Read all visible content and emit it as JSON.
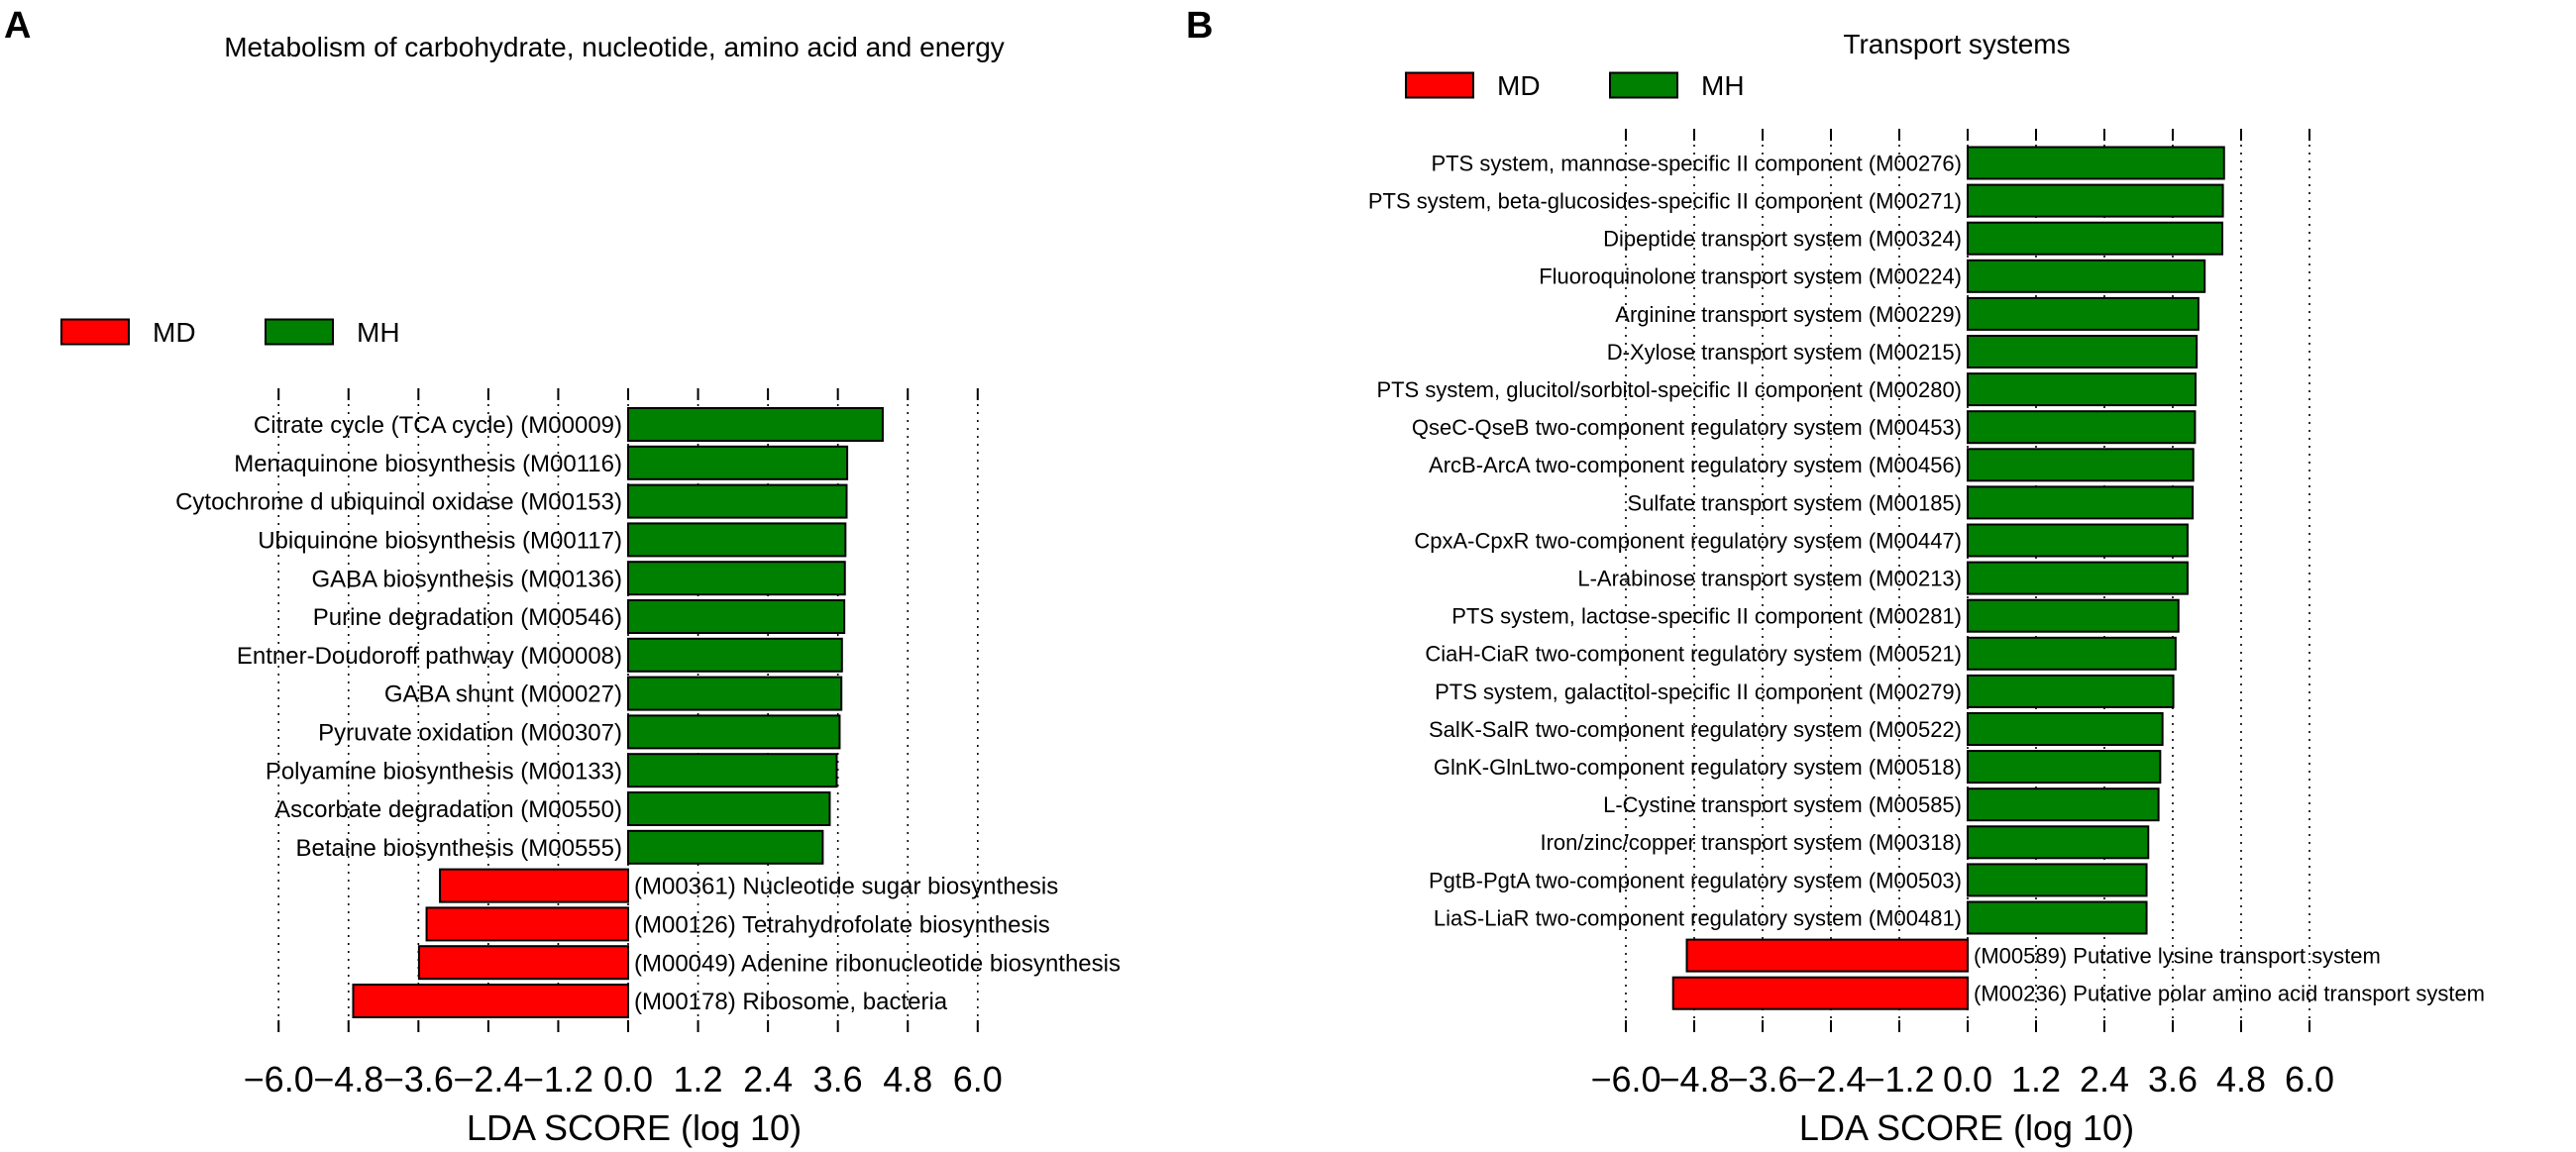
{
  "panels": {
    "a": {
      "letter": "A"
    },
    "b": {
      "letter": "B"
    }
  },
  "colors": {
    "MD": "#ff0000",
    "MH": "#008000"
  },
  "chart_data": [
    {
      "type": "bar",
      "orientation": "horizontal",
      "title": "Metabolism of carbohydrate, nucleotide, amino acid and energy",
      "xlabel": "LDA SCORE (log 10)",
      "ylabel": "",
      "xlim": [
        -6.0,
        6.0
      ],
      "xticks": [
        "−6.0",
        "−4.8",
        "−3.6",
        "−2.4",
        "−1.2",
        "0.0",
        "1.2",
        "2.4",
        "3.6",
        "4.8",
        "6.0"
      ],
      "grid": "vertical dotted",
      "legend": {
        "position": "top-left",
        "entries": [
          "MD",
          "MH"
        ]
      },
      "bars": [
        {
          "label": "Citrate cycle (TCA cycle) (M00009)",
          "value": 4.37,
          "group": "MH"
        },
        {
          "label": "Menaquinone biosynthesis (M00116)",
          "value": 3.76,
          "group": "MH"
        },
        {
          "label": "Cytochrome d ubiquinol oxidase (M00153)",
          "value": 3.75,
          "group": "MH"
        },
        {
          "label": "Ubiquinone biosynthesis (M00117)",
          "value": 3.73,
          "group": "MH"
        },
        {
          "label": "GABA biosynthesis (M00136)",
          "value": 3.72,
          "group": "MH"
        },
        {
          "label": "Purine degradation (M00546)",
          "value": 3.71,
          "group": "MH"
        },
        {
          "label": "Entner-Doudoroff pathway (M00008)",
          "value": 3.67,
          "group": "MH"
        },
        {
          "label": "GABA shunt (M00027)",
          "value": 3.66,
          "group": "MH"
        },
        {
          "label": "Pyruvate oxidation (M00307)",
          "value": 3.63,
          "group": "MH"
        },
        {
          "label": "Polyamine biosynthesis (M00133)",
          "value": 3.58,
          "group": "MH"
        },
        {
          "label": "Ascorbate degradation (M00550)",
          "value": 3.46,
          "group": "MH"
        },
        {
          "label": "Betaine biosynthesis (M00555)",
          "value": 3.34,
          "group": "MH"
        },
        {
          "label": "(M00361) Nucleotide sugar biosynthesis",
          "value": -3.23,
          "group": "MD"
        },
        {
          "label": "(M00126) Tetrahydrofolate biosynthesis",
          "value": -3.46,
          "group": "MD"
        },
        {
          "label": "(M00049) Adenine ribonucleotide biosynthesis",
          "value": -3.59,
          "group": "MD"
        },
        {
          "label": "(M00178) Ribosome, bacteria",
          "value": -4.72,
          "group": "MD"
        }
      ]
    },
    {
      "type": "bar",
      "orientation": "horizontal",
      "title": "Transport systems",
      "xlabel": "LDA SCORE (log 10)",
      "ylabel": "",
      "xlim": [
        -6.0,
        6.0
      ],
      "xticks": [
        "−6.0",
        "−4.8",
        "−3.6",
        "−2.4",
        "−1.2",
        "0.0",
        "1.2",
        "2.4",
        "3.6",
        "4.8",
        "6.0"
      ],
      "grid": "vertical dotted",
      "legend": {
        "position": "top",
        "entries": [
          "MD",
          "MH"
        ]
      },
      "bars": [
        {
          "label": "PTS system, mannose-specific II component (M00276)",
          "value": 4.5,
          "group": "MH"
        },
        {
          "label": "PTS system, beta-glucosides-specific II component (M00271)",
          "value": 4.48,
          "group": "MH"
        },
        {
          "label": "Dipeptide transport system (M00324)",
          "value": 4.47,
          "group": "MH"
        },
        {
          "label": "Fluoroquinolone transport system (M00224)",
          "value": 4.16,
          "group": "MH"
        },
        {
          "label": "Arginine transport system (M00229)",
          "value": 4.05,
          "group": "MH"
        },
        {
          "label": "D-Xylose transport system (M00215)",
          "value": 4.02,
          "group": "MH"
        },
        {
          "label": "PTS system, glucitol/sorbitol-specific II component (M00280)",
          "value": 4.0,
          "group": "MH"
        },
        {
          "label": "QseC-QseB two-component regulatory system (M00453)",
          "value": 3.99,
          "group": "MH"
        },
        {
          "label": "ArcB-ArcA two-component regulatory system (M00456)",
          "value": 3.96,
          "group": "MH"
        },
        {
          "label": "Sulfate transport system (M00185)",
          "value": 3.95,
          "group": "MH"
        },
        {
          "label": "CpxA-CpxR two-component regulatory system (M00447)",
          "value": 3.86,
          "group": "MH"
        },
        {
          "label": "L-Arabinose transport system (M00213)",
          "value": 3.86,
          "group": "MH"
        },
        {
          "label": "PTS system, lactose-specific II component (M00281)",
          "value": 3.7,
          "group": "MH"
        },
        {
          "label": "CiaH-CiaR two-component regulatory system (M00521)",
          "value": 3.65,
          "group": "MH"
        },
        {
          "label": "PTS system, galactitol-specific II component (M00279)",
          "value": 3.61,
          "group": "MH"
        },
        {
          "label": "SalK-SalR two-component regulatory system (M00522)",
          "value": 3.42,
          "group": "MH"
        },
        {
          "label": "GlnK-GlnLtwo-component regulatory system (M00518)",
          "value": 3.38,
          "group": "MH"
        },
        {
          "label": "L-Cystine transport system (M00585)",
          "value": 3.35,
          "group": "MH"
        },
        {
          "label": "Iron/zinc/copper transport system (M00318)",
          "value": 3.17,
          "group": "MH"
        },
        {
          "label": "PgtB-PgtA two-component regulatory system (M00503)",
          "value": 3.14,
          "group": "MH"
        },
        {
          "label": "LiaS-LiaR two-component regulatory system (M00481)",
          "value": 3.14,
          "group": "MH"
        },
        {
          "label": "(M00589) Putative lysine transport system",
          "value": -4.93,
          "group": "MD"
        },
        {
          "label": "(M00236) Putative polar amino acid transport system",
          "value": -5.17,
          "group": "MD"
        }
      ]
    }
  ]
}
